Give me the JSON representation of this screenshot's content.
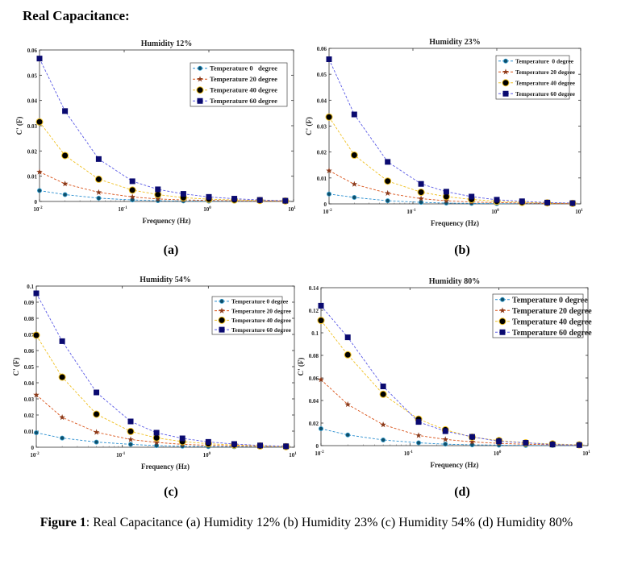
{
  "header": "Real Capacitance:",
  "panel_labels": [
    "(a)",
    "(b)",
    "(c)",
    "(d)"
  ],
  "caption": {
    "bold": "Figure 1",
    "text": ": Real Capacitance (a) Humidity 12% (b) Humidity 23% (c) Humidity 54% (d) Humidity 80%"
  },
  "series_colors": {
    "T0": {
      "line": "#2a8fd0",
      "marker": "#0e4e6a"
    },
    "T20": {
      "line": "#d95319",
      "marker": "#8b3a1a"
    },
    "T40": {
      "line": "#f0c020",
      "marker": "#000000"
    },
    "T60": {
      "line": "#5a5ae6",
      "marker": "#0a0a70"
    }
  },
  "chart_data": [
    {
      "type": "line",
      "title": "Humidity 12%",
      "xlabel": "Frequency (Hz)",
      "ylabel": "C' (F)",
      "xscale": "log",
      "xlim": [
        0.01,
        10
      ],
      "ylim": [
        0,
        0.06
      ],
      "grid": false,
      "legend": "top-right",
      "x_tick_base": "10",
      "x_tick_exponents": [
        "-2",
        "-1",
        "0",
        "1"
      ],
      "y_ticks": [
        "0",
        "0.01",
        "0.02",
        "0.03",
        "0.04",
        "0.05",
        "0.06"
      ],
      "x": [
        0.01,
        0.02,
        0.05,
        0.125,
        0.25,
        0.5,
        1,
        2,
        4,
        8
      ],
      "series": [
        {
          "name": "Temperature 0   degree",
          "key": "T0",
          "values": [
            0.0043,
            0.0027,
            0.0013,
            0.0006,
            0.0003,
            0.0002,
            0.0001,
            0.0001,
            0.0001,
            0.0001
          ]
        },
        {
          "name": "Temperature 20 degree",
          "key": "T20",
          "values": [
            0.0117,
            0.007,
            0.0036,
            0.0018,
            0.001,
            0.0006,
            0.0004,
            0.0003,
            0.0002,
            0.0001
          ]
        },
        {
          "name": "Temperature 40 degree",
          "key": "T40",
          "values": [
            0.0315,
            0.0182,
            0.0088,
            0.0045,
            0.0027,
            0.0015,
            0.0009,
            0.0006,
            0.0004,
            0.0002
          ]
        },
        {
          "name": "Temperature 60 degree",
          "key": "T60",
          "values": [
            0.0566,
            0.0358,
            0.0168,
            0.008,
            0.0048,
            0.003,
            0.0018,
            0.0011,
            0.0006,
            0.0003
          ]
        }
      ]
    },
    {
      "type": "line",
      "title": "Humidity 23%",
      "xlabel": "Frequency (Hz)",
      "ylabel": "C' (F)",
      "xscale": "log",
      "xlim": [
        0.01,
        10
      ],
      "ylim": [
        0,
        0.06
      ],
      "grid": false,
      "legend": "top-right",
      "x_tick_base": "10",
      "x_tick_exponents": [
        "-2",
        "-1",
        "0",
        "1"
      ],
      "y_ticks": [
        "0",
        "0.01",
        "0.02",
        "0.03",
        "0.04",
        "0.05",
        "0.06"
      ],
      "x": [
        0.01,
        0.02,
        0.05,
        0.125,
        0.25,
        0.5,
        1,
        2,
        4,
        8
      ],
      "series": [
        {
          "name": "Temperature  0 degree",
          "key": "T0",
          "values": [
            0.0038,
            0.0025,
            0.0012,
            0.0006,
            0.0003,
            0.0002,
            0.0001,
            0.0001,
            0.0001,
            0.0001
          ]
        },
        {
          "name": "Temperature 20 degree",
          "key": "T20",
          "values": [
            0.0128,
            0.0076,
            0.0041,
            0.002,
            0.0012,
            0.0007,
            0.0005,
            0.0003,
            0.0002,
            0.0001
          ]
        },
        {
          "name": "Temperature 40 degree",
          "key": "T40",
          "values": [
            0.0335,
            0.0188,
            0.0088,
            0.0045,
            0.0028,
            0.0017,
            0.001,
            0.0006,
            0.0004,
            0.0002
          ]
        },
        {
          "name": "Temperature 60 degree",
          "key": "T60",
          "values": [
            0.0558,
            0.0345,
            0.0162,
            0.0077,
            0.0047,
            0.0028,
            0.0016,
            0.001,
            0.0005,
            0.0003
          ]
        }
      ]
    },
    {
      "type": "line",
      "title": "Humidity 54%",
      "xlabel": "Frequency (Hz)",
      "ylabel": "C' (F)",
      "xscale": "log",
      "xlim": [
        0.01,
        10
      ],
      "ylim": [
        0,
        0.1
      ],
      "grid": false,
      "legend": "top-right",
      "x_tick_base": "10",
      "x_tick_exponents": [
        "-2",
        "-1",
        "0",
        "1"
      ],
      "y_ticks": [
        "0",
        "0.01",
        "0.02",
        "0.03",
        "0.04",
        "0.05",
        "0.06",
        "0.07",
        "0.08",
        "0.09",
        "0.1"
      ],
      "x": [
        0.01,
        0.02,
        0.05,
        0.125,
        0.25,
        0.5,
        1,
        2,
        4,
        8
      ],
      "series": [
        {
          "name": "Temperature 0 degree",
          "key": "T0",
          "values": [
            0.009,
            0.0057,
            0.0032,
            0.0018,
            0.001,
            0.0006,
            0.0004,
            0.0003,
            0.0002,
            0.0001
          ]
        },
        {
          "name": "Temperature 20 degree",
          "key": "T20",
          "values": [
            0.0325,
            0.0185,
            0.0093,
            0.0048,
            0.003,
            0.0018,
            0.0012,
            0.0008,
            0.0005,
            0.0003
          ]
        },
        {
          "name": "Temperature 40 degree",
          "key": "T40",
          "values": [
            0.0695,
            0.0435,
            0.0205,
            0.0098,
            0.0058,
            0.0035,
            0.0022,
            0.0014,
            0.0008,
            0.0004
          ]
        },
        {
          "name": "Temperature 60 degree",
          "key": "T60",
          "values": [
            0.0955,
            0.0658,
            0.034,
            0.016,
            0.009,
            0.0055,
            0.0033,
            0.002,
            0.0011,
            0.0006
          ]
        }
      ]
    },
    {
      "type": "line",
      "title": "Humidity 80%",
      "xlabel": "Frequency (Hz)",
      "ylabel": "C' (F)",
      "xscale": "log",
      "xlim": [
        0.01,
        10
      ],
      "ylim": [
        0,
        0.14
      ],
      "grid": false,
      "legend": "top-right",
      "x_tick_base": "10",
      "x_tick_exponents": [
        "-2",
        "-1",
        "0",
        "1"
      ],
      "y_ticks": [
        "0",
        "0.02",
        "0.04",
        "0.06",
        "0.08",
        "0.1",
        "0.12",
        "0.14"
      ],
      "x": [
        0.01,
        0.02,
        0.05,
        0.125,
        0.25,
        0.5,
        1,
        2,
        4,
        8
      ],
      "series": [
        {
          "name": "Temperature 0 degree",
          "key": "T0",
          "values": [
            0.015,
            0.0095,
            0.005,
            0.0025,
            0.0013,
            0.0007,
            0.0004,
            0.0002,
            0.0001,
            0.0001
          ]
        },
        {
          "name": "Temperature 20 degree",
          "key": "T20",
          "values": [
            0.0585,
            0.0365,
            0.0185,
            0.009,
            0.0055,
            0.0033,
            0.002,
            0.0012,
            0.0007,
            0.0003
          ]
        },
        {
          "name": "Temperature 40 degree",
          "key": "T40",
          "values": [
            0.111,
            0.0805,
            0.0455,
            0.0235,
            0.014,
            0.0075,
            0.0045,
            0.0025,
            0.0015,
            0.0007
          ]
        },
        {
          "name": "Temperature 60 degree",
          "key": "T60",
          "values": [
            0.124,
            0.096,
            0.0525,
            0.021,
            0.0128,
            0.0078,
            0.0038,
            0.0025,
            0.001,
            0.0005
          ]
        }
      ]
    }
  ]
}
